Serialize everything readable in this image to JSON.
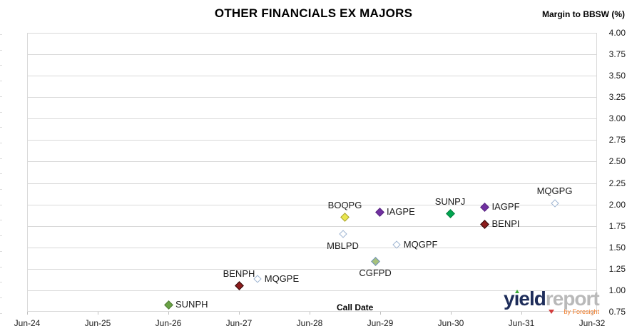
{
  "header": {
    "title": "OTHER FINANCIALS EX MAJORS",
    "y_axis_title": "Margin to BBSW (%)"
  },
  "axes": {
    "x_title": "Call Date",
    "y_tick_labels": [
      "4.00",
      "3.75",
      "3.50",
      "3.25",
      "3.00",
      "2.75",
      "2.50",
      "2.25",
      "2.00",
      "1.75",
      "1.50",
      "1.25",
      "1.00",
      "0.75"
    ],
    "x_tick_labels": [
      "Jun-24",
      "Jun-25",
      "Jun-26",
      "Jun-27",
      "Jun-28",
      "Jun-29",
      "Jun-30",
      "Jun-31",
      "Jun-32"
    ]
  },
  "logo": {
    "brand_primary": "yield",
    "brand_secondary": "report",
    "byline": "by Foresight"
  },
  "chart_data": {
    "type": "scatter",
    "title": "OTHER FINANCIALS EX MAJORS",
    "xlabel": "Call Date",
    "ylabel": "Margin to BBSW (%)",
    "xlim_labels": [
      "Jun-24",
      "Jun-32"
    ],
    "ylim": [
      0.75,
      4.0
    ],
    "y_tick_step": 0.25,
    "grid": "horizontal-only",
    "grid_color": "#d9d9d9",
    "marker": "diamond",
    "points": [
      {
        "label": "SUNPH",
        "call_date": "Jun-26",
        "x_years_from_jun24": 2.0,
        "margin_pct": 0.83,
        "fill": "#69a244",
        "stroke": "#4e7a33",
        "style": "filled",
        "label_pos": "right"
      },
      {
        "label": "BENPH",
        "call_date": "Jun-27",
        "x_years_from_jun24": 3.0,
        "margin_pct": 1.05,
        "fill": "#8c1c1c",
        "stroke": "#2d0a0a",
        "style": "filled",
        "label_pos": "above"
      },
      {
        "label": "MQGPE",
        "call_date": "Sep-27",
        "x_years_from_jun24": 3.26,
        "margin_pct": 1.13,
        "fill": "#ffffff",
        "stroke": "#9db3d1",
        "style": "open",
        "label_pos": "right"
      },
      {
        "label": "MBLPD",
        "call_date": "Dec-28",
        "x_years_from_jun24": 4.47,
        "margin_pct": 1.66,
        "fill": "#ffffff",
        "stroke": "#9db3d1",
        "style": "open",
        "label_pos": "below"
      },
      {
        "label": "BOQPG",
        "call_date": "Dec-28",
        "x_years_from_jun24": 4.5,
        "margin_pct": 1.85,
        "fill": "#e9e64e",
        "stroke": "#a8a234",
        "style": "filled",
        "label_pos": "above"
      },
      {
        "label": "CGFPD",
        "call_date": "May-29",
        "x_years_from_jun24": 4.93,
        "margin_pct": 1.34,
        "fill": "#a7c27c",
        "stroke": "#6b8ebf",
        "style": "filled",
        "label_pos": "below"
      },
      {
        "label": "IAGPE",
        "call_date": "Jun-29",
        "x_years_from_jun24": 4.99,
        "margin_pct": 1.91,
        "fill": "#7030a0",
        "stroke": "#582480",
        "style": "filled",
        "label_pos": "right"
      },
      {
        "label": "MQGPF",
        "call_date": "Sep-29",
        "x_years_from_jun24": 5.23,
        "margin_pct": 1.53,
        "fill": "#ffffff",
        "stroke": "#9db3d1",
        "style": "open",
        "label_pos": "right"
      },
      {
        "label": "SUNPJ",
        "call_date": "Jun-30",
        "x_years_from_jun24": 5.99,
        "margin_pct": 1.89,
        "fill": "#00a650",
        "stroke": "#067a3d",
        "style": "filled",
        "label_pos": "above"
      },
      {
        "label": "IAGPF",
        "call_date": "Dec-30",
        "x_years_from_jun24": 6.48,
        "margin_pct": 1.97,
        "fill": "#7030a0",
        "stroke": "#582480",
        "style": "filled",
        "label_pos": "right"
      },
      {
        "label": "BENPI",
        "call_date": "Dec-30",
        "x_years_from_jun24": 6.48,
        "margin_pct": 1.77,
        "fill": "#8c1c1c",
        "stroke": "#2d0a0a",
        "style": "filled",
        "label_pos": "right"
      },
      {
        "label": "MQGPG",
        "call_date": "Dec-31",
        "x_years_from_jun24": 7.47,
        "margin_pct": 2.01,
        "fill": "#ffffff",
        "stroke": "#9db3d1",
        "style": "open",
        "label_pos": "above"
      }
    ]
  }
}
